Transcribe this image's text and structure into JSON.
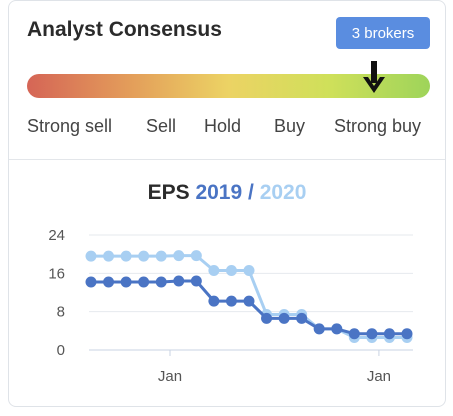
{
  "header": {
    "title": "Analyst Consensus",
    "brokers_button": "3 brokers"
  },
  "gauge": {
    "scale_labels": [
      "Strong sell",
      "Sell",
      "Hold",
      "Buy",
      "Strong buy"
    ],
    "indicator_position": 0.87,
    "indicator_icon": "arrow-down-icon"
  },
  "eps": {
    "label": "EPS",
    "year_a": "2019",
    "separator": "/",
    "year_b": "2020"
  },
  "chart_data": {
    "type": "line",
    "title": "EPS 2019 / 2020",
    "ylim": [
      0,
      24
    ],
    "y_ticks": [
      "0",
      "8",
      "16",
      "24"
    ],
    "x_tick_labels": [
      "Jan",
      "Jan"
    ],
    "grid": true,
    "colors": {
      "2019": "#4a74c4",
      "2020": "#a8cff2"
    },
    "series": [
      {
        "name": "2019",
        "points": [
          [
            0,
            14.2
          ],
          [
            1,
            14.2
          ],
          [
            2,
            14.2
          ],
          [
            3,
            14.2
          ],
          [
            4,
            14.2
          ],
          [
            5,
            14.4
          ],
          [
            6,
            14.4
          ],
          [
            7,
            10.2
          ],
          [
            8,
            10.2
          ],
          [
            9,
            10.2
          ],
          [
            10,
            6.6
          ],
          [
            11,
            6.6
          ],
          [
            12,
            6.6
          ],
          [
            13,
            4.4
          ],
          [
            14,
            4.4
          ],
          [
            15,
            3.4
          ],
          [
            16,
            3.4
          ],
          [
            17,
            3.4
          ],
          [
            18,
            3.4
          ]
        ]
      },
      {
        "name": "2020",
        "points": [
          [
            0,
            19.6
          ],
          [
            1,
            19.6
          ],
          [
            2,
            19.6
          ],
          [
            3,
            19.6
          ],
          [
            4,
            19.6
          ],
          [
            5,
            19.7
          ],
          [
            6,
            19.7
          ],
          [
            7,
            16.6
          ],
          [
            8,
            16.6
          ],
          [
            9,
            16.6
          ],
          [
            10,
            7.4
          ],
          [
            11,
            7.4
          ],
          [
            12,
            7.4
          ],
          [
            13,
            4.4
          ],
          [
            14,
            4.4
          ],
          [
            15,
            2.6
          ],
          [
            16,
            2.6
          ],
          [
            17,
            2.6
          ],
          [
            18,
            2.6
          ]
        ]
      }
    ]
  }
}
